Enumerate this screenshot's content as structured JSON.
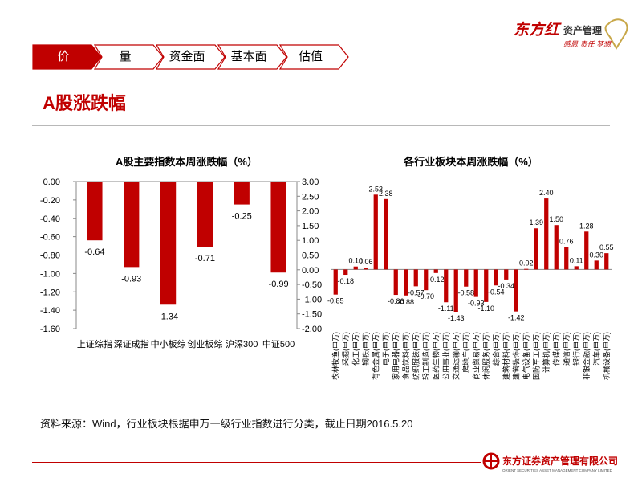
{
  "brand": {
    "logo_text": "东方红",
    "logo_sub": "资产管理",
    "logo_slogan": "感恩 责任 梦想",
    "footer_company": "东方证券资产管理有限公司",
    "footer_company_en": "ORIENT SECURITIES ASSET MANAGEMENT COMPANY LIMITED",
    "accent_color": "#c00000"
  },
  "nav_tabs": [
    {
      "label": "价",
      "active": true
    },
    {
      "label": "量",
      "active": false
    },
    {
      "label": "资金面",
      "active": false
    },
    {
      "label": "基本面",
      "active": false
    },
    {
      "label": "估值",
      "active": false
    }
  ],
  "section_title": "A股涨跌幅",
  "source_note": "资料来源：Wind，行业板块根据申万一级行业指数进行分类，截止日期2016.5.20",
  "chart_data": [
    {
      "type": "bar",
      "title": "A股主要指数本周涨跌幅（%）",
      "categories": [
        "上证综指",
        "深证成指",
        "中小板综",
        "创业板综",
        "沪深300",
        "中证500"
      ],
      "values": [
        -0.64,
        -0.93,
        -1.34,
        -0.71,
        -0.25,
        -0.99
      ],
      "ylim": [
        -1.6,
        0
      ],
      "yticks": [
        "0.00",
        "-0.20",
        "-0.40",
        "-0.60",
        "-0.80",
        "-1.00",
        "-1.20",
        "-1.40",
        "-1.60"
      ],
      "y2lim": [
        -2,
        3
      ],
      "y2ticks": [
        "3.00",
        "2.50",
        "2.00",
        "1.50",
        "1.00",
        "0.50",
        "0.00",
        "-0.50",
        "-1.00",
        "-1.50",
        "-2.00"
      ],
      "bar_color": "#c00000"
    },
    {
      "type": "bar",
      "title": "各行业板块本周涨跌幅（%）",
      "categories": [
        "农林牧渔(申万)",
        "采掘(申万)",
        "化工(申万)",
        "钢铁(申万)",
        "有色金属(申万)",
        "电子(申万)",
        "家用电器(申万)",
        "食品饮料(申万)",
        "纺织服装(申万)",
        "轻工制造(申万)",
        "医药生物(申万)",
        "公用事业(申万)",
        "交通运输(申万)",
        "房地产(申万)",
        "商业贸易(申万)",
        "休闲服务(申万)",
        "综合(申万)",
        "建筑材料(申万)",
        "建筑装饰(申万)",
        "电气设备(申万)",
        "国防军工(申万)",
        "计算机(申万)",
        "传媒(申万)",
        "通信(申万)",
        "银行(申万)",
        "非银金融(申万)",
        "汽车(申万)",
        "机械设备(申万)"
      ],
      "values": [
        -0.85,
        -0.18,
        0.1,
        0.06,
        2.53,
        2.38,
        -0.86,
        -0.88,
        -0.57,
        -0.7,
        -0.12,
        -1.11,
        -1.43,
        -0.58,
        -0.93,
        -1.1,
        -0.54,
        -0.34,
        -1.42,
        0.02,
        1.39,
        2.4,
        1.5,
        0.76,
        0.11,
        1.28,
        0.3,
        0.55
      ],
      "labels": [
        "-0.85",
        "-0.18",
        "0.10",
        "0.06",
        "2.53",
        "2.38",
        "-0.86",
        "-0.88",
        "-0.57",
        "-0.70",
        "-0.12",
        "-1.11",
        "-1.43",
        "-0.58",
        "-0.93",
        "-1.10",
        "-0.54",
        "-0.34",
        "-1.42",
        "0.02",
        "1.39",
        "2.40",
        "1.50",
        "0.76",
        "0.11",
        "1.28",
        "0.30",
        "0.55"
      ],
      "bar_color": "#c00000"
    }
  ]
}
